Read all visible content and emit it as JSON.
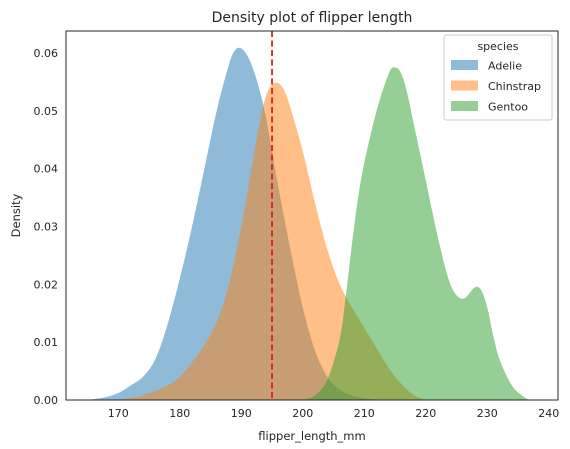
{
  "chart_data": {
    "type": "area",
    "title": "Density plot of flipper length",
    "xlabel": "flipper_length_mm",
    "ylabel": "Density",
    "xlim": [
      161.5,
      241.5
    ],
    "ylim": [
      0,
      0.0638
    ],
    "xticks": [
      170,
      180,
      190,
      200,
      210,
      220,
      230,
      240
    ],
    "yticks": [
      0.0,
      0.01,
      0.02,
      0.03,
      0.04,
      0.05,
      0.06
    ],
    "xtick_labels": [
      "170",
      "180",
      "190",
      "200",
      "210",
      "220",
      "230",
      "240"
    ],
    "ytick_labels": [
      "0.00",
      "0.01",
      "0.02",
      "0.03",
      "0.04",
      "0.05",
      "0.06"
    ],
    "grid": false,
    "legend": {
      "title": "species",
      "position": "top-right"
    },
    "reference_line": {
      "orientation": "vertical",
      "x": 195,
      "color": "#e41a1c",
      "style": "dashed"
    },
    "series": [
      {
        "name": "Adelie",
        "color": "#1f77b4",
        "opacity": 0.5,
        "x": [
          165,
          168,
          170,
          172,
          174,
          176,
          178,
          180,
          182,
          184,
          186,
          188,
          189,
          190,
          191,
          192,
          193,
          194,
          195,
          196,
          198,
          200,
          202,
          204,
          206,
          208,
          210,
          213
        ],
        "y": [
          0.0,
          0.0005,
          0.0012,
          0.0025,
          0.004,
          0.007,
          0.013,
          0.021,
          0.03,
          0.04,
          0.05,
          0.058,
          0.0605,
          0.0608,
          0.0595,
          0.057,
          0.0535,
          0.049,
          0.043,
          0.037,
          0.026,
          0.016,
          0.0085,
          0.004,
          0.0018,
          0.0008,
          0.0003,
          0.0
        ]
      },
      {
        "name": "Chinstrap",
        "color": "#ff7f0e",
        "opacity": 0.5,
        "x": [
          170,
          174,
          178,
          180,
          182,
          184,
          186,
          188,
          190,
          192,
          193,
          194,
          195,
          196,
          197,
          198,
          200,
          202,
          204,
          206,
          208,
          210,
          212,
          214,
          216,
          218,
          220
        ],
        "y": [
          0.0,
          0.0008,
          0.0025,
          0.004,
          0.0065,
          0.0095,
          0.0135,
          0.02,
          0.03,
          0.042,
          0.048,
          0.0525,
          0.0545,
          0.0548,
          0.0535,
          0.0505,
          0.043,
          0.034,
          0.026,
          0.02,
          0.016,
          0.0125,
          0.009,
          0.0055,
          0.0028,
          0.0009,
          0.0
        ]
      },
      {
        "name": "Gentoo",
        "color": "#2ca02c",
        "opacity": 0.5,
        "x": [
          200,
          202,
          204,
          206,
          207,
          208,
          209,
          210,
          212,
          214,
          215,
          216,
          217,
          218,
          220,
          222,
          224,
          226,
          228,
          229,
          230,
          231,
          232,
          234,
          236,
          237
        ],
        "y": [
          0.0,
          0.0008,
          0.0035,
          0.0105,
          0.018,
          0.027,
          0.035,
          0.041,
          0.05,
          0.0565,
          0.0575,
          0.0565,
          0.053,
          0.048,
          0.038,
          0.028,
          0.02,
          0.0175,
          0.0195,
          0.019,
          0.016,
          0.011,
          0.007,
          0.0025,
          0.0005,
          0.0
        ]
      }
    ]
  }
}
